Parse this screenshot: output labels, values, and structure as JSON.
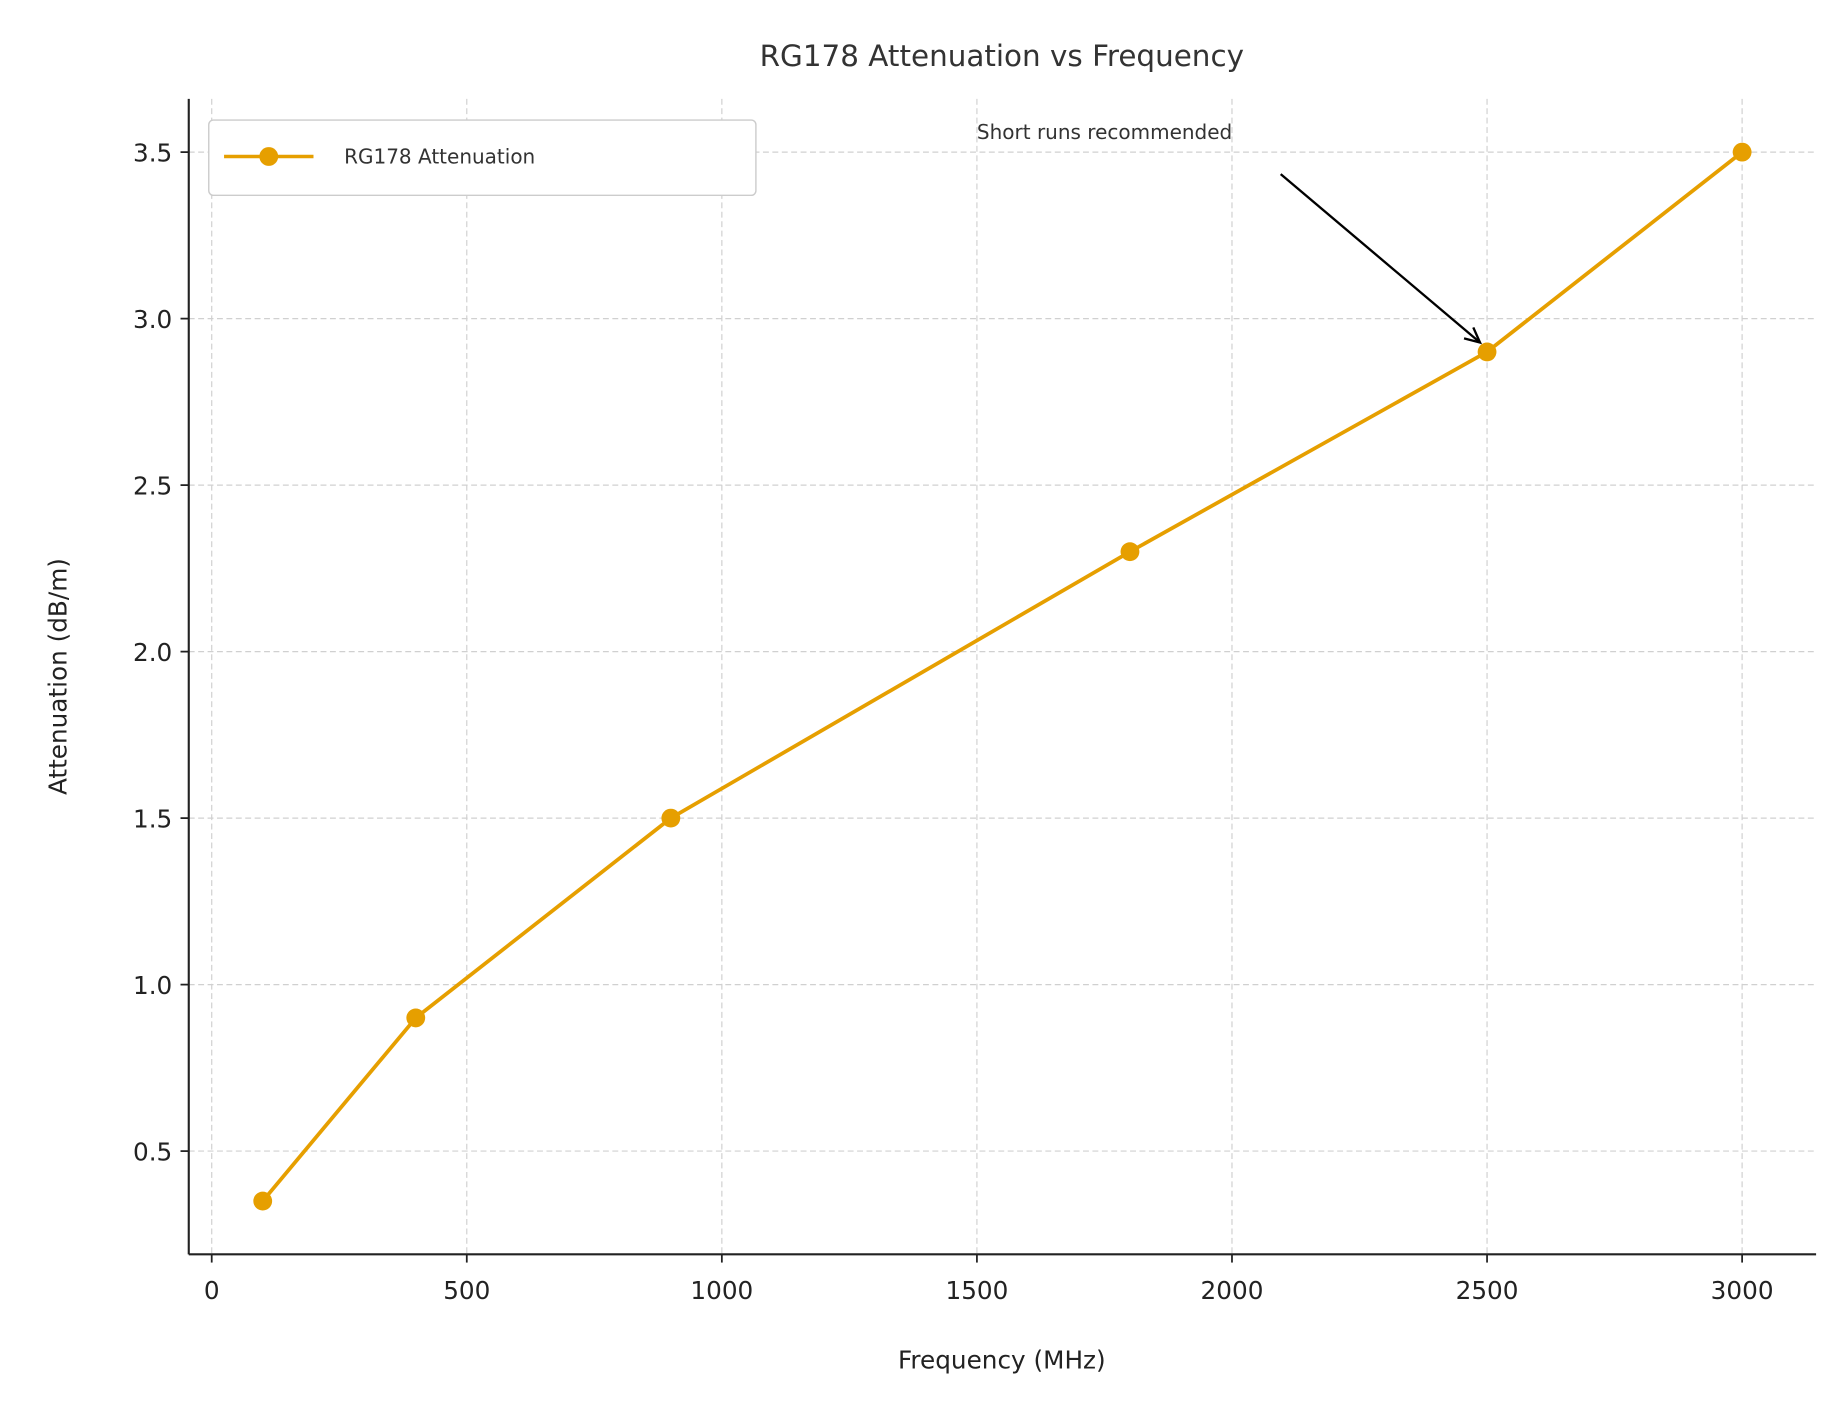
{
  "chart_data": {
    "type": "line",
    "title": "RG178 Attenuation vs Frequency",
    "xlabel": "Frequency (MHz)",
    "ylabel": "Attenuation (dB/m)",
    "xlim": [
      -45,
      3145
    ],
    "ylim": [
      0.19,
      3.66
    ],
    "xticks": [
      0,
      500,
      1000,
      1500,
      2000,
      2500,
      3000
    ],
    "xtick_labels": [
      "0",
      "500",
      "1000",
      "1500",
      "2000",
      "2500",
      "3000"
    ],
    "yticks": [
      0.5,
      1.0,
      1.5,
      2.0,
      2.5,
      3.0,
      3.5
    ],
    "ytick_labels": [
      "0.5",
      "1.0",
      "1.5",
      "2.0",
      "2.5",
      "3.0",
      "3.5"
    ],
    "grid": true,
    "legend_position": "top-left",
    "series": [
      {
        "name": "RG178 Attenuation",
        "color": "#E69F00",
        "marker": "circle",
        "x": [
          100,
          400,
          900,
          1800,
          2500,
          3000
        ],
        "y": [
          0.35,
          0.9,
          1.5,
          2.3,
          2.9,
          3.5
        ]
      }
    ],
    "annotations": [
      {
        "text": "Short runs recommended",
        "target_x": 2500,
        "target_y": 2.9,
        "text_x": 1500,
        "text_y": 3.54
      }
    ]
  }
}
